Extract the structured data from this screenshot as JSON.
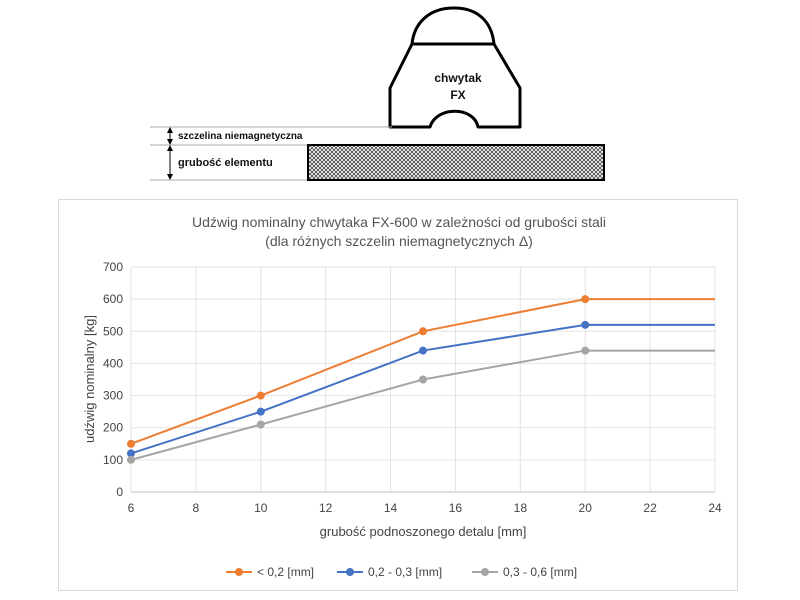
{
  "diagram": {
    "gripper_label_line1": "chwytak",
    "gripper_label_line2": "FX",
    "gap_label": "szczelina niemagnetyczna",
    "thickness_label": "grubość elementu"
  },
  "chart_data": {
    "type": "line",
    "title": "Udźwig nominalny chwytaka FX-600 w zależności od grubości stali",
    "subtitle": "(dla różnych szczelin niemagnetycznych Δ)",
    "xlabel": "grubość podnoszonego detalu [mm]",
    "ylabel": "udźwig nominalny [kg]",
    "xlim": [
      6,
      24
    ],
    "ylim": [
      0,
      700
    ],
    "xticks": [
      6,
      8,
      10,
      12,
      14,
      16,
      18,
      20,
      22,
      24
    ],
    "yticks": [
      0,
      100,
      200,
      300,
      400,
      500,
      600,
      700
    ],
    "grid": true,
    "legend_position": "bottom",
    "series": [
      {
        "name": "< 0,2 [mm]",
        "color": "#ED7D31",
        "x": [
          6,
          10,
          15,
          20
        ],
        "y": [
          150,
          300,
          500,
          600
        ],
        "extend_to": 24
      },
      {
        "name": "0,2 - 0,3 [mm]",
        "color": "#4472C4",
        "x": [
          6,
          10,
          15,
          20
        ],
        "y": [
          120,
          250,
          440,
          520
        ],
        "extend_to": 24
      },
      {
        "name": "0,3 - 0,6 [mm]",
        "color": "#A5A5A5",
        "x": [
          6,
          10,
          15,
          20
        ],
        "y": [
          100,
          210,
          350,
          440
        ],
        "extend_to": 24
      }
    ]
  }
}
